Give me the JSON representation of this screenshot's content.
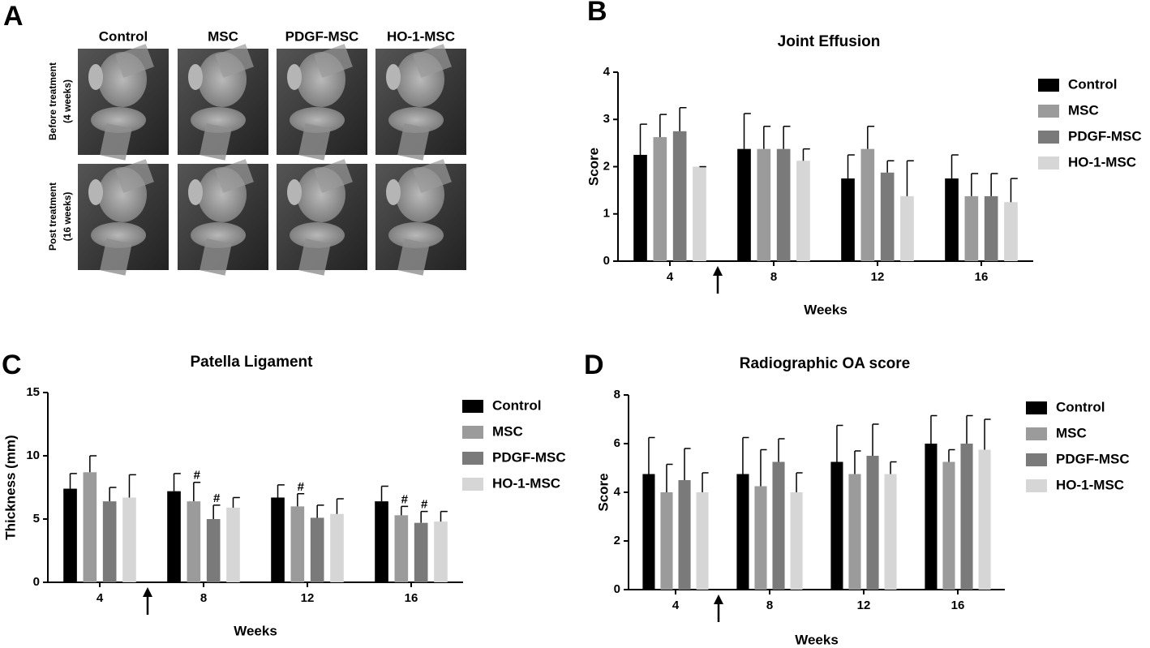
{
  "panel_a": {
    "label": "A",
    "columns": [
      "Control",
      "MSC",
      "PDGF-MSC",
      "HO-1-MSC"
    ],
    "rows": [
      [
        "Before treatment",
        "(4 weeks)"
      ],
      [
        "Post treatment",
        "(16 weeks)"
      ]
    ]
  },
  "chart_data": [
    {
      "panel_label": "B",
      "type": "bar",
      "title": "Joint Effusion",
      "xlabel": "Weeks",
      "ylabel": "Score",
      "categories": [
        "4",
        "8",
        "12",
        "16"
      ],
      "ylim": [
        0,
        4
      ],
      "yticks": [
        0,
        1,
        2,
        3,
        4
      ],
      "series": [
        {
          "name": "Control",
          "color": "#000000",
          "values": [
            2.25,
            2.375,
            1.75,
            1.75
          ],
          "errors": [
            0.65,
            0.75,
            0.5,
            0.5
          ]
        },
        {
          "name": "MSC",
          "color": "#9b9b9b",
          "values": [
            2.625,
            2.375,
            2.375,
            1.375
          ],
          "errors": [
            0.48,
            0.48,
            0.48,
            0.48
          ]
        },
        {
          "name": "PDGF-MSC",
          "color": "#7a7a7a",
          "values": [
            2.75,
            2.375,
            1.875,
            1.375
          ],
          "errors": [
            0.5,
            0.48,
            0.25,
            0.48
          ]
        },
        {
          "name": "HO-1-MSC",
          "color": "#d6d6d6",
          "values": [
            2.0,
            2.125,
            1.375,
            1.25
          ],
          "errors": [
            0,
            0.25,
            0.75,
            0.5
          ]
        }
      ],
      "annotations": []
    },
    {
      "panel_label": "C",
      "type": "bar",
      "title": "Patella Ligament",
      "xlabel": "Weeks",
      "ylabel": "Thickness (mm)",
      "categories": [
        "4",
        "8",
        "12",
        "16"
      ],
      "ylim": [
        0,
        15
      ],
      "yticks": [
        0,
        5,
        10,
        15
      ],
      "series": [
        {
          "name": "Control",
          "color": "#000000",
          "values": [
            7.4,
            7.2,
            6.7,
            6.4
          ],
          "errors": [
            1.2,
            1.4,
            1.0,
            1.2
          ]
        },
        {
          "name": "MSC",
          "color": "#9b9b9b",
          "values": [
            8.7,
            6.4,
            6.0,
            5.3
          ],
          "errors": [
            1.3,
            1.5,
            1.0,
            0.7
          ]
        },
        {
          "name": "PDGF-MSC",
          "color": "#7a7a7a",
          "values": [
            6.4,
            5.0,
            5.1,
            4.7
          ],
          "errors": [
            1.1,
            1.1,
            1.0,
            0.9
          ]
        },
        {
          "name": "HO-1-MSC",
          "color": "#d6d6d6",
          "values": [
            6.7,
            5.9,
            5.4,
            4.8
          ],
          "errors": [
            1.8,
            0.8,
            1.2,
            0.8
          ]
        }
      ],
      "annotations": [
        {
          "text": "#",
          "series": 1,
          "category": 1
        },
        {
          "text": "#",
          "series": 2,
          "category": 1
        },
        {
          "text": "#",
          "series": 1,
          "category": 2
        },
        {
          "text": "#",
          "series": 1,
          "category": 3
        },
        {
          "text": "#",
          "series": 2,
          "category": 3
        }
      ]
    },
    {
      "panel_label": "D",
      "type": "bar",
      "title": "Radiographic OA score",
      "xlabel": "Weeks",
      "ylabel": "Score",
      "categories": [
        "4",
        "8",
        "12",
        "16"
      ],
      "ylim": [
        0,
        8
      ],
      "yticks": [
        0,
        2,
        4,
        6,
        8
      ],
      "series": [
        {
          "name": "Control",
          "color": "#000000",
          "values": [
            4.75,
            4.75,
            5.25,
            6.0
          ],
          "errors": [
            1.5,
            1.5,
            1.5,
            1.15
          ]
        },
        {
          "name": "MSC",
          "color": "#9b9b9b",
          "values": [
            4.0,
            4.25,
            4.75,
            5.25
          ],
          "errors": [
            1.15,
            1.5,
            0.95,
            0.5
          ]
        },
        {
          "name": "PDGF-MSC",
          "color": "#7a7a7a",
          "values": [
            4.5,
            5.25,
            5.5,
            6.0
          ],
          "errors": [
            1.3,
            0.95,
            1.3,
            1.15
          ]
        },
        {
          "name": "HO-1-MSC",
          "color": "#d6d6d6",
          "values": [
            4.0,
            4.0,
            4.75,
            5.75
          ],
          "errors": [
            0.8,
            0.8,
            0.5,
            1.25
          ]
        }
      ],
      "annotations": []
    }
  ]
}
